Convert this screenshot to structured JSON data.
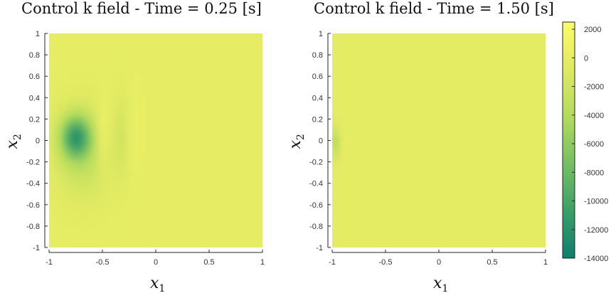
{
  "chart_data": [
    {
      "type": "heatmap",
      "title": "Control k field - Time = 0.25 [s]",
      "xlabel": "x1",
      "ylabel": "x2",
      "xlim": [
        -1,
        1
      ],
      "ylim": [
        -1,
        1
      ],
      "xticks": [
        "-1",
        "-0.5",
        "0",
        "0.5",
        "1"
      ],
      "yticks": [
        "1",
        "0.8",
        "0.6",
        "0.4",
        "0.2",
        "0",
        "-0.2",
        "-0.4",
        "-0.6",
        "-0.8",
        "-1"
      ],
      "background_value": 0,
      "features": [
        {
          "center": [
            -0.75,
            0.03
          ],
          "sigma": [
            0.1,
            0.14
          ],
          "value": -9000
        },
        {
          "center": [
            -0.68,
            -0.1
          ],
          "sigma": [
            0.18,
            0.3
          ],
          "value": -3000
        },
        {
          "center": [
            -0.5,
            0.05
          ],
          "sigma": [
            0.05,
            0.22
          ],
          "value": 1800
        },
        {
          "center": [
            -0.32,
            0.05
          ],
          "sigma": [
            0.05,
            0.28
          ],
          "value": -1400
        },
        {
          "center": [
            -0.2,
            0.1
          ],
          "sigma": [
            0.05,
            0.25
          ],
          "value": 500
        }
      ]
    },
    {
      "type": "heatmap",
      "title": "Control k field - Time = 1.50 [s]",
      "xlabel": "x1",
      "ylabel": "x2",
      "xlim": [
        -1,
        1
      ],
      "ylim": [
        -1,
        1
      ],
      "xticks": [
        "-1",
        "-0.5",
        "0",
        "0.5",
        "1"
      ],
      "yticks": [
        "1",
        "0.8",
        "0.6",
        "0.4",
        "0.2",
        "0",
        "-0.2",
        "-0.4",
        "-0.6",
        "-0.8",
        "-1"
      ],
      "background_value": -250,
      "features": [
        {
          "center": [
            -0.97,
            -0.02
          ],
          "sigma": [
            0.035,
            0.1
          ],
          "value": -2800
        },
        {
          "center": [
            -0.85,
            0.0
          ],
          "sigma": [
            0.03,
            0.06
          ],
          "value": 300
        }
      ]
    }
  ],
  "colorbar": {
    "range": [
      -14000,
      2500
    ],
    "ticks": [
      "2000",
      "0",
      "-2000",
      "-4000",
      "-6000",
      "-8000",
      "-10000",
      "-12000",
      "-14000"
    ],
    "colormap": [
      "#0d7e6e",
      "#3c9f68",
      "#76bf63",
      "#b2db5e",
      "#dfe962",
      "#fbfb6a"
    ]
  }
}
